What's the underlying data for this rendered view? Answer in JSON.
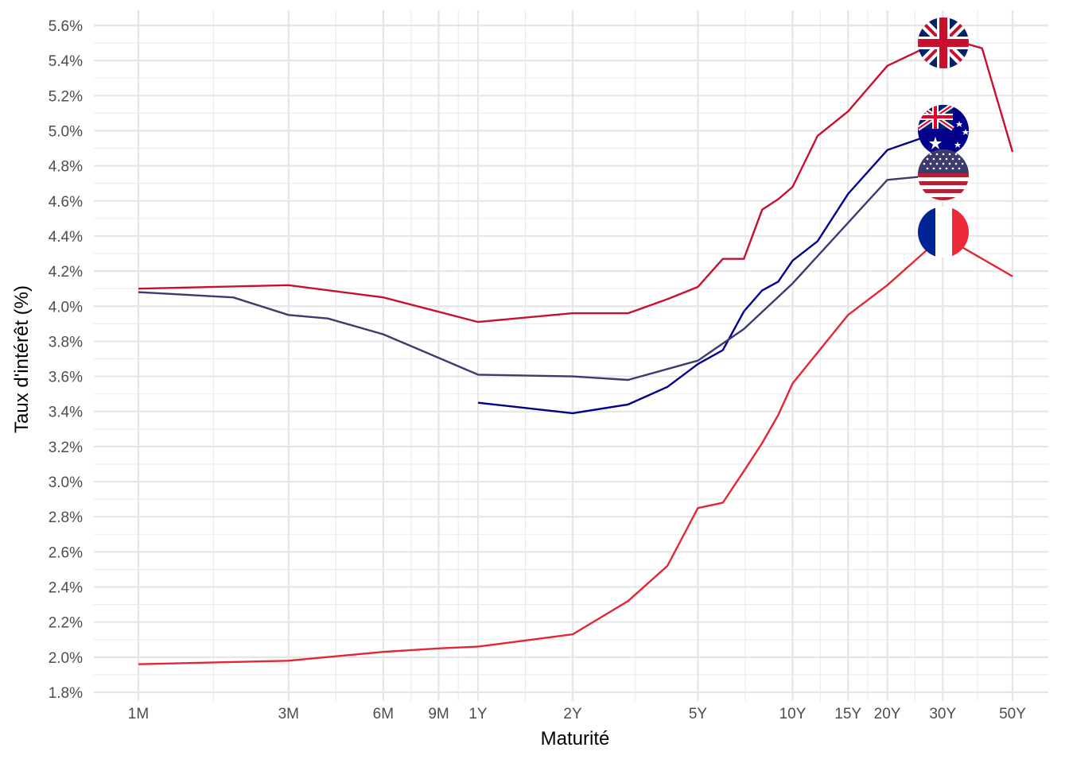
{
  "chart_data": {
    "type": "line",
    "xlabel": "Maturité",
    "ylabel": "Taux d'intérêt (%)",
    "x_scale": "log",
    "x_unit": "years",
    "x_ticks": [
      {
        "value": 0.0833,
        "label": "1M"
      },
      {
        "value": 0.25,
        "label": "3M"
      },
      {
        "value": 0.5,
        "label": "6M"
      },
      {
        "value": 0.75,
        "label": "9M"
      },
      {
        "value": 1,
        "label": "1Y"
      },
      {
        "value": 2,
        "label": "2Y"
      },
      {
        "value": 5,
        "label": "5Y"
      },
      {
        "value": 10,
        "label": "10Y"
      },
      {
        "value": 15,
        "label": "15Y"
      },
      {
        "value": 20,
        "label": "20Y"
      },
      {
        "value": 30,
        "label": "30Y"
      },
      {
        "value": 50,
        "label": "50Y"
      }
    ],
    "ylim": [
      1.8,
      5.6
    ],
    "y_ticks": [
      {
        "value": 1.8,
        "label": "1.8%"
      },
      {
        "value": 2.0,
        "label": "2.0%"
      },
      {
        "value": 2.2,
        "label": "2.2%"
      },
      {
        "value": 2.4,
        "label": "2.4%"
      },
      {
        "value": 2.6,
        "label": "2.6%"
      },
      {
        "value": 2.8,
        "label": "2.8%"
      },
      {
        "value": 3.0,
        "label": "3.0%"
      },
      {
        "value": 3.2,
        "label": "3.2%"
      },
      {
        "value": 3.4,
        "label": "3.4%"
      },
      {
        "value": 3.6,
        "label": "3.6%"
      },
      {
        "value": 3.8,
        "label": "3.8%"
      },
      {
        "value": 4.0,
        "label": "4.0%"
      },
      {
        "value": 4.2,
        "label": "4.2%"
      },
      {
        "value": 4.4,
        "label": "4.4%"
      },
      {
        "value": 4.6,
        "label": "4.6%"
      },
      {
        "value": 4.8,
        "label": "4.8%"
      },
      {
        "value": 5.0,
        "label": "5.0%"
      },
      {
        "value": 5.2,
        "label": "5.2%"
      },
      {
        "value": 5.4,
        "label": "5.4%"
      },
      {
        "value": 5.6,
        "label": "5.6%"
      }
    ],
    "grid": true,
    "legend": "none",
    "series": [
      {
        "flag": "uk-flag-icon",
        "color": "#C8102E",
        "x": [
          0.0833,
          0.25,
          0.5,
          1,
          2,
          3,
          4,
          5,
          6,
          7,
          8,
          9,
          10,
          12,
          15,
          20,
          30,
          35,
          40,
          50
        ],
        "y": [
          4.1,
          4.12,
          4.05,
          3.91,
          3.96,
          3.96,
          4.04,
          4.11,
          4.27,
          4.27,
          4.55,
          4.61,
          4.68,
          4.97,
          5.11,
          5.37,
          5.52,
          5.5,
          5.47,
          4.88
        ]
      },
      {
        "flag": "australia-flag-icon",
        "color": "#00008B",
        "x": [
          1,
          2,
          3,
          4,
          5,
          6,
          7,
          8,
          9,
          10,
          12,
          15,
          20,
          30
        ],
        "y": [
          3.45,
          3.39,
          3.44,
          3.54,
          3.67,
          3.75,
          3.97,
          4.09,
          4.14,
          4.26,
          4.37,
          4.64,
          4.89,
          5.0
        ]
      },
      {
        "flag": "usa-flag-icon",
        "color": "#3C3B6E",
        "x": [
          0.0833,
          0.1667,
          0.25,
          0.3333,
          0.5,
          1,
          2,
          3,
          5,
          7,
          10,
          20,
          30
        ],
        "y": [
          4.08,
          4.05,
          3.95,
          3.93,
          3.84,
          3.61,
          3.6,
          3.58,
          3.69,
          3.87,
          4.13,
          4.72,
          4.75
        ]
      },
      {
        "flag": "france-flag-icon",
        "color": "#E32636",
        "x": [
          0.0833,
          0.25,
          0.5,
          0.75,
          1,
          2,
          3,
          4,
          5,
          6,
          7,
          8,
          9,
          10,
          15,
          20,
          30,
          50
        ],
        "y": [
          1.96,
          1.98,
          2.03,
          2.05,
          2.06,
          2.13,
          2.32,
          2.52,
          2.85,
          2.88,
          3.06,
          3.22,
          3.38,
          3.56,
          3.95,
          4.12,
          4.4,
          4.17
        ]
      }
    ]
  }
}
